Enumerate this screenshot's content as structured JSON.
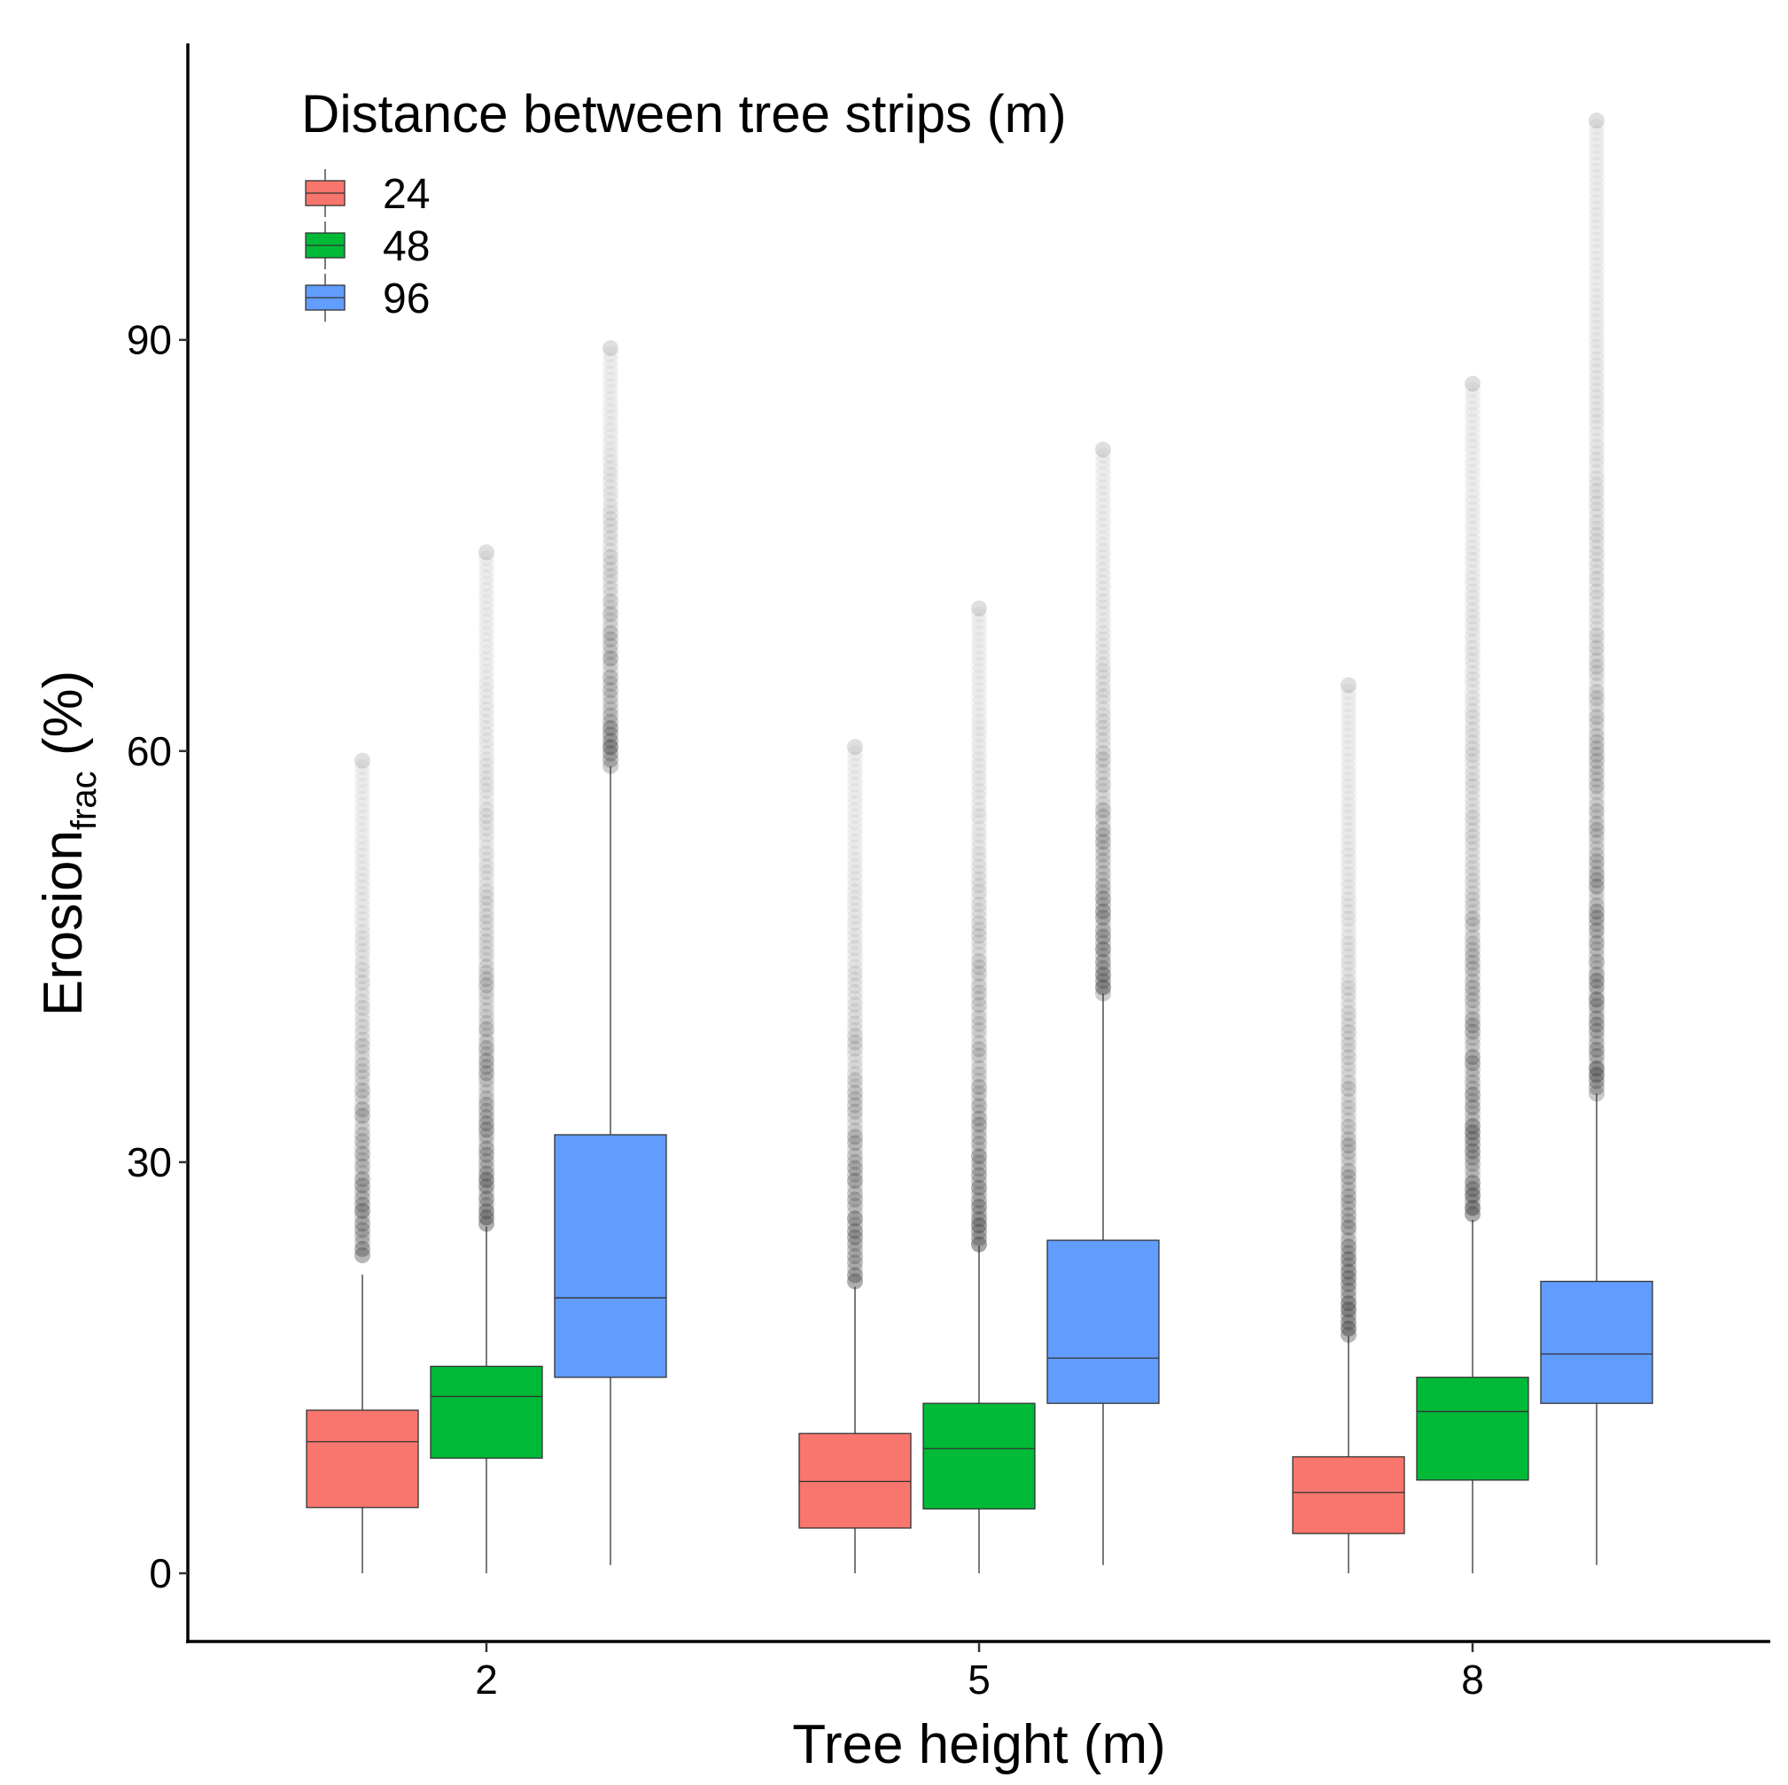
{
  "chart_data": {
    "type": "boxplot",
    "xlabel": "Tree height (m)",
    "ylabel_main": "Erosion",
    "ylabel_subscript": "frac",
    "ylabel_suffix": " (%)",
    "categories": [
      "2",
      "5",
      "8"
    ],
    "yticks": [
      "0",
      "30",
      "60",
      "90"
    ],
    "ylim": [
      -5,
      112
    ],
    "legend": {
      "title": "Distance between tree strips (m)",
      "position": "top-left",
      "entries": [
        "24",
        "48",
        "96"
      ]
    },
    "series": [
      {
        "name": "24",
        "color": "#F8766D",
        "boxes": [
          {
            "category": "2",
            "whisker_low": 0,
            "q1": 4.8,
            "median": 9.6,
            "q3": 11.9,
            "whisker_high": 21.8,
            "outlier_min": 23.2,
            "outlier_max": 59.3
          },
          {
            "category": "5",
            "whisker_low": 0,
            "q1": 3.3,
            "median": 6.7,
            "q3": 10.2,
            "whisker_high": 20.9,
            "outlier_min": 21.3,
            "outlier_max": 60.3
          },
          {
            "category": "8",
            "whisker_low": 0,
            "q1": 2.9,
            "median": 5.9,
            "q3": 8.5,
            "whisker_high": 17.3,
            "outlier_min": 17.4,
            "outlier_max": 64.8
          }
        ]
      },
      {
        "name": "48",
        "color": "#00BA38",
        "boxes": [
          {
            "category": "2",
            "whisker_low": 0,
            "q1": 8.4,
            "median": 12.9,
            "q3": 15.1,
            "whisker_high": 25.3,
            "outlier_min": 25.5,
            "outlier_max": 74.5
          },
          {
            "category": "5",
            "whisker_low": 0,
            "q1": 4.7,
            "median": 9.1,
            "q3": 12.4,
            "whisker_high": 23.9,
            "outlier_min": 24.0,
            "outlier_max": 70.4
          },
          {
            "category": "8",
            "whisker_low": 0,
            "q1": 6.8,
            "median": 11.8,
            "q3": 14.3,
            "whisker_high": 25.8,
            "outlier_min": 26.2,
            "outlier_max": 86.8
          }
        ]
      },
      {
        "name": "96",
        "color": "#619CFF",
        "boxes": [
          {
            "category": "2",
            "whisker_low": 0.6,
            "q1": 14.3,
            "median": 20.1,
            "q3": 32.0,
            "whisker_high": 58.9,
            "outlier_min": 58.9,
            "outlier_max": 89.4
          },
          {
            "category": "5",
            "whisker_low": 0.6,
            "q1": 12.4,
            "median": 15.7,
            "q3": 24.3,
            "whisker_high": 42.3,
            "outlier_min": 42.3,
            "outlier_max": 82.0
          },
          {
            "category": "8",
            "whisker_low": 0.6,
            "q1": 12.4,
            "median": 16.0,
            "q3": 21.3,
            "whisker_high": 35.0,
            "outlier_min": 35.0,
            "outlier_max": 106.0
          }
        ]
      }
    ]
  }
}
